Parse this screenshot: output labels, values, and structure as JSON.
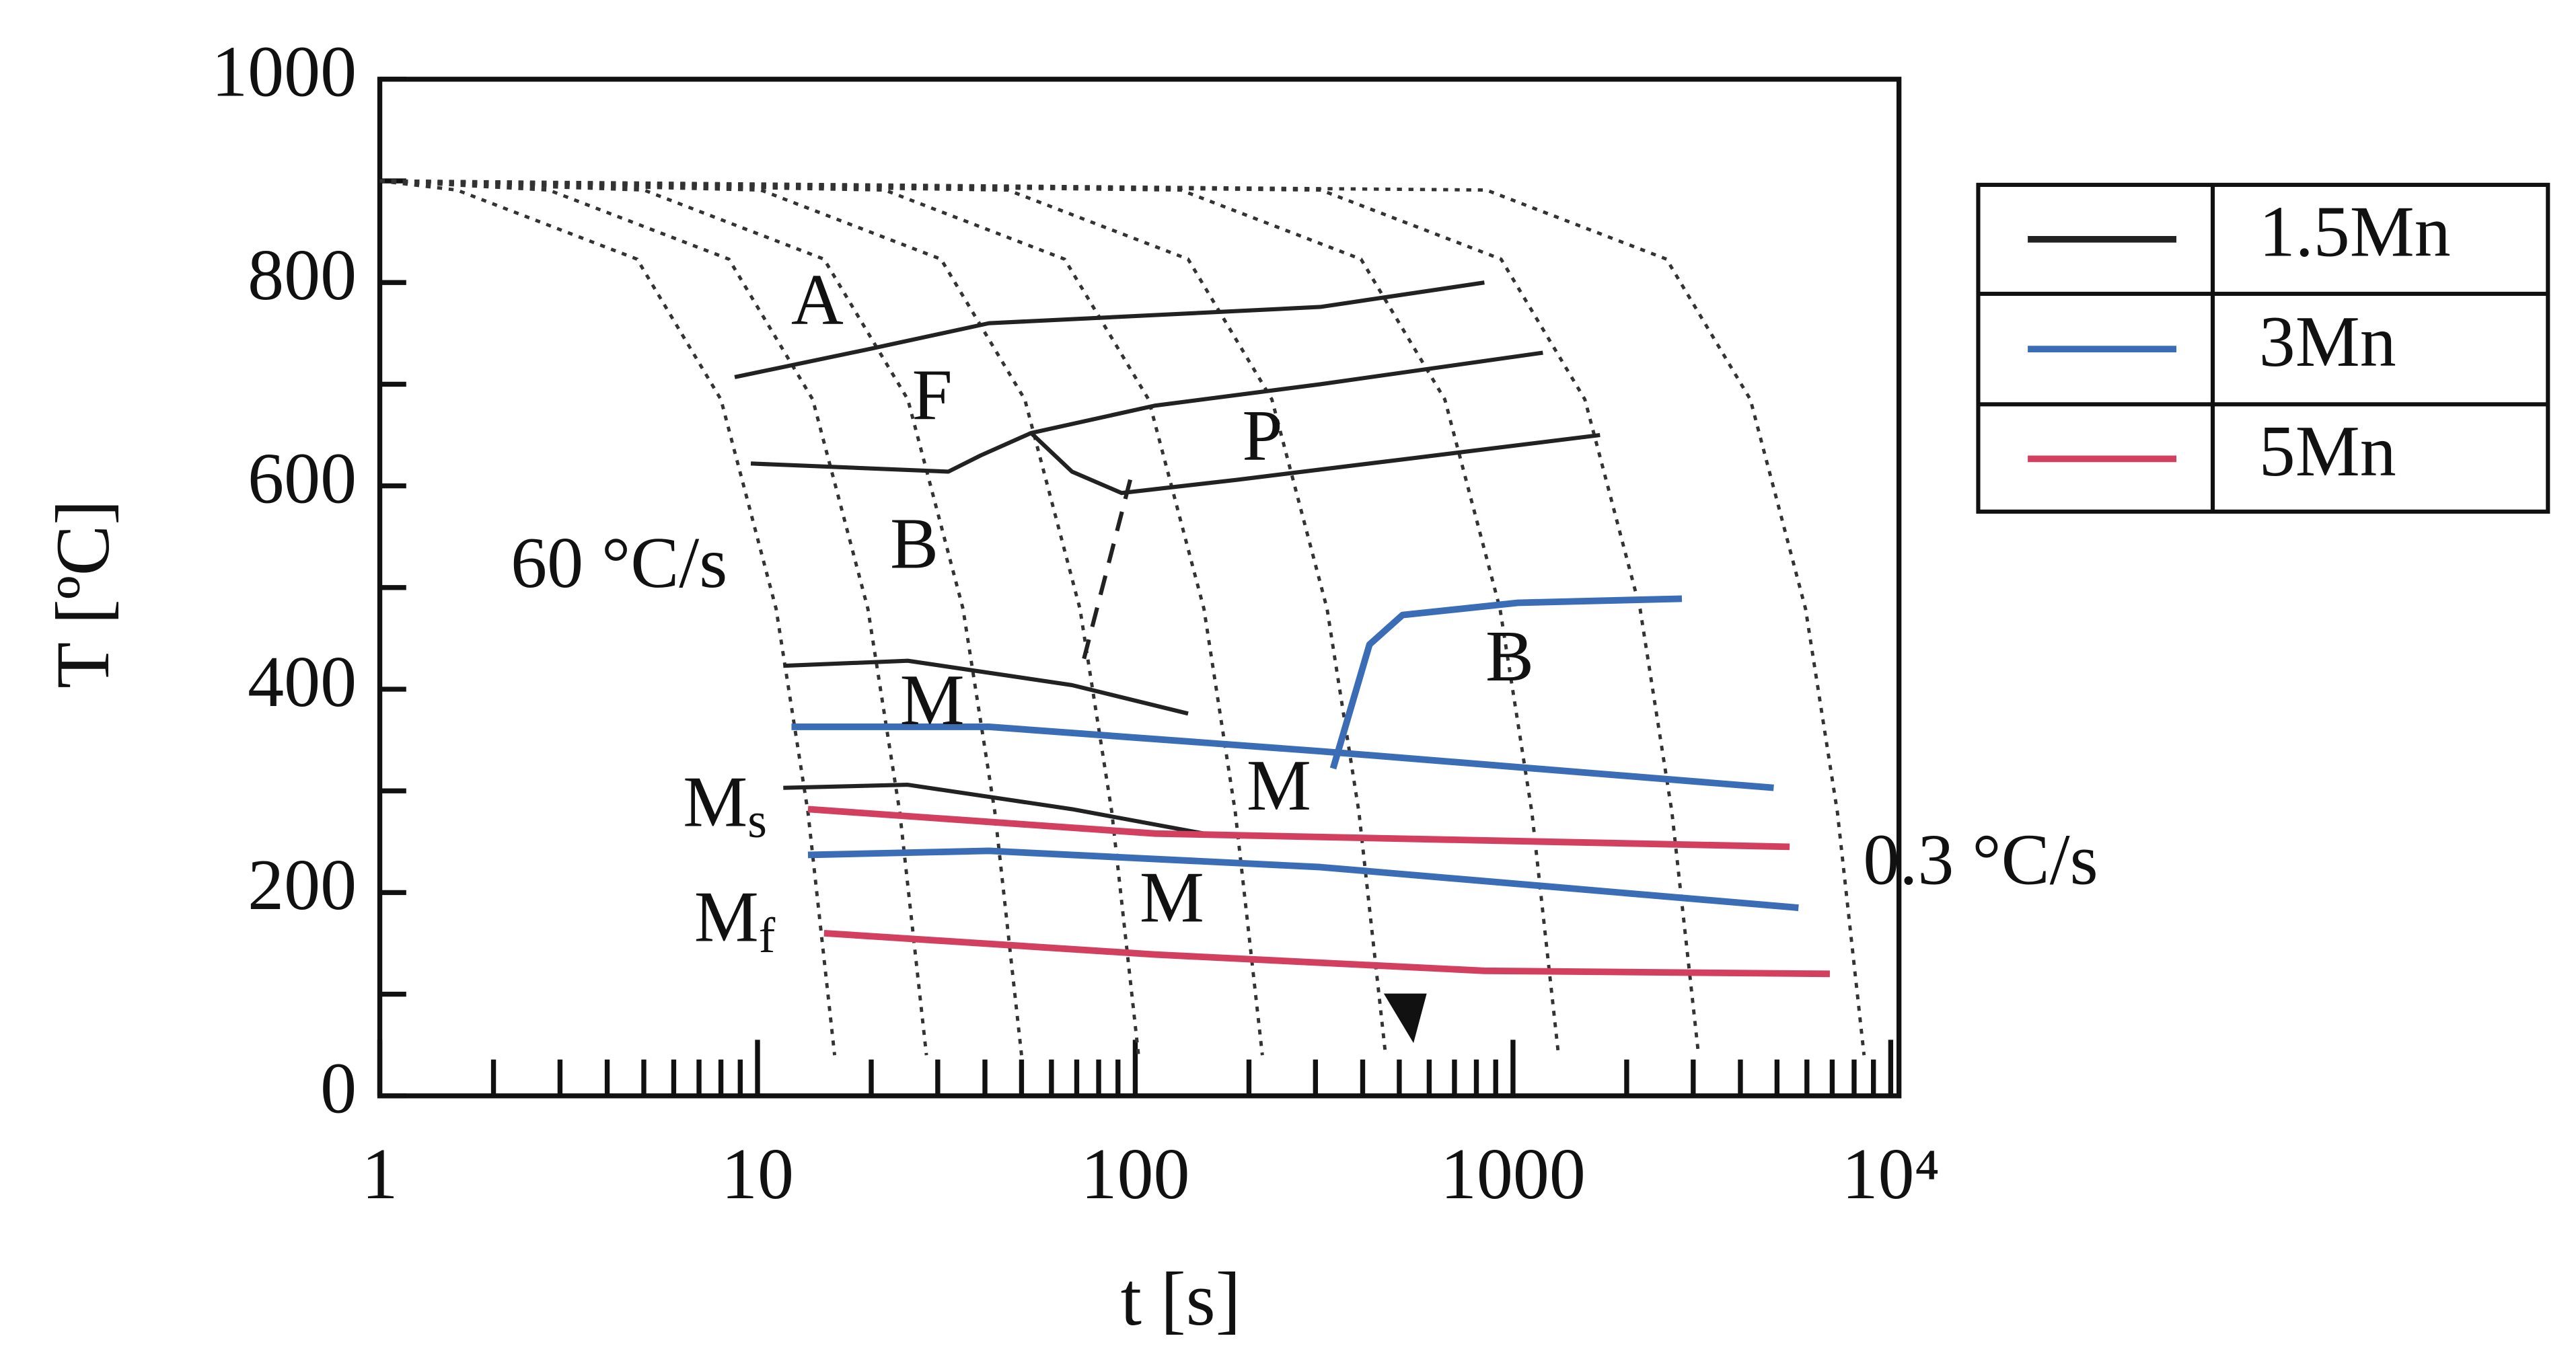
{
  "chart_data": {
    "type": "line",
    "x_label": "t [s]",
    "y_label": "T [ºC]",
    "xscale": "log",
    "xlim": [
      1,
      10000
    ],
    "ylim": [
      0,
      1000
    ],
    "xticks": [
      1,
      10,
      100,
      1000,
      {
        "value": 10000,
        "label": "10⁴"
      }
    ],
    "yticks": [
      0,
      200,
      400,
      600,
      800,
      1000
    ],
    "x_minor_ticks": [
      2,
      3,
      4,
      5,
      6,
      7,
      8,
      9,
      20,
      30,
      40,
      50,
      60,
      70,
      80,
      90,
      200,
      300,
      400,
      500,
      600,
      700,
      800,
      900,
      2000,
      3000,
      4000,
      5000,
      6000,
      7000,
      8000,
      9000
    ],
    "y_minor_ticks": [
      100,
      300,
      500,
      700,
      900
    ],
    "series": [
      {
        "name": "1.5Mn",
        "color": "#222222"
      },
      {
        "name": "3Mn",
        "color": "#3a6db5"
      },
      {
        "name": "5Mn",
        "color": "#d23f5f"
      }
    ],
    "cooling_curves": [
      {
        "x": [
          1,
          1.6,
          4.8,
          8,
          11.2,
          13.6,
          16
        ],
        "values": [
          900,
          891,
          823,
          685,
          479,
          279,
          40
        ]
      },
      {
        "x": [
          1,
          2.8,
          8.4,
          14,
          19.6,
          23.8,
          28
        ],
        "values": [
          900,
          891,
          823,
          685,
          479,
          279,
          40
        ]
      },
      {
        "x": [
          1,
          5,
          15,
          25,
          35,
          42.5,
          50
        ],
        "values": [
          900,
          891,
          823,
          685,
          479,
          279,
          40
        ]
      },
      {
        "x": [
          1,
          10.2,
          30.6,
          51,
          71.4,
          86.7,
          102
        ],
        "values": [
          900,
          891,
          823,
          685,
          479,
          279,
          40
        ]
      },
      {
        "x": [
          1,
          21.7,
          65,
          108.5,
          152,
          184,
          217
        ],
        "values": [
          900,
          891,
          823,
          685,
          479,
          279,
          40
        ]
      },
      {
        "x": [
          1,
          46,
          138,
          230,
          322,
          391,
          460
        ],
        "values": [
          900,
          891,
          823,
          685,
          479,
          279,
          40
        ]
      },
      {
        "x": [
          1,
          132,
          396,
          660,
          924,
          1122,
          1320
        ],
        "values": [
          900,
          891,
          823,
          685,
          479,
          279,
          40
        ]
      },
      {
        "x": [
          1,
          310,
          930,
          1550,
          2170,
          2635,
          3100
        ],
        "values": [
          900,
          891,
          823,
          685,
          479,
          279,
          40
        ]
      },
      {
        "x": [
          1,
          850,
          2550,
          4250,
          5950,
          7225,
          8500
        ],
        "values": [
          900,
          891,
          823,
          685,
          479,
          279,
          40
        ]
      }
    ],
    "curves": [
      {
        "series": 0,
        "x": [
          8.7,
          20,
          41,
          113,
          309,
          840
        ],
        "values": [
          707,
          735,
          760,
          768,
          776,
          800
        ]
      },
      {
        "series": 0,
        "x": [
          9.6,
          32,
          39,
          53,
          113,
          309,
          1200
        ],
        "values": [
          622,
          614,
          630,
          652,
          679,
          700,
          731
        ]
      },
      {
        "series": 0,
        "x": [
          53,
          68,
          92,
          186,
          510,
          1700
        ],
        "values": [
          652,
          614,
          593,
          606,
          626,
          650
        ]
      },
      {
        "series": 0,
        "dashed": true,
        "x": [
          97,
          72
        ],
        "values": [
          606,
          420
        ]
      },
      {
        "series": 0,
        "x": [
          11.7,
          25,
          68,
          138
        ],
        "values": [
          423,
          428,
          404,
          376
        ]
      },
      {
        "series": 0,
        "x": [
          11.7,
          25,
          68,
          152
        ],
        "values": [
          303,
          306,
          282,
          258
        ]
      },
      {
        "series": 1,
        "x": [
          12.3,
          41,
          309,
          4900
        ],
        "values": [
          363,
          363,
          339,
          303
        ]
      },
      {
        "series": 1,
        "x": [
          334,
          417,
          510,
          1030,
          2800
        ],
        "values": [
          322,
          444,
          473,
          485,
          489
        ]
      },
      {
        "series": 1,
        "x": [
          13.6,
          41,
          309,
          5700
        ],
        "values": [
          237,
          241,
          225,
          185
        ]
      },
      {
        "series": 2,
        "x": [
          13.6,
          113,
          5400
        ],
        "values": [
          282,
          258,
          245
        ]
      },
      {
        "series": 2,
        "x": [
          15,
          113,
          840,
          6900
        ],
        "values": [
          160,
          139,
          123,
          120
        ]
      }
    ],
    "annotations": [
      {
        "text": "A",
        "x": 14.4,
        "y": 776,
        "color": "#222222"
      },
      {
        "text": "F",
        "x": 29,
        "y": 682,
        "color": "#222222"
      },
      {
        "text": "P",
        "x": 217,
        "y": 642,
        "color": "#222222"
      },
      {
        "text": "B",
        "x": 26,
        "y": 536,
        "color": "#222222"
      },
      {
        "text": "M",
        "x": 29,
        "y": 382,
        "color": "#222222"
      },
      {
        "text": "B",
        "x": 980,
        "y": 425,
        "color": "#3a6db5"
      },
      {
        "text": "M",
        "x": 240,
        "y": 298,
        "color": "#3a6db5"
      },
      {
        "text": "M",
        "x": 125,
        "y": 188,
        "color": "#d23f5f"
      },
      {
        "text": "M",
        "sub": "s",
        "x": 8.2,
        "y": 282,
        "color": "#d23f5f"
      },
      {
        "text": "M",
        "sub": "f",
        "x": 8.7,
        "y": 169,
        "color": "#d23f5f"
      },
      {
        "text": "60 °C/s",
        "x": 4.3,
        "y": 517,
        "color": "#111111"
      },
      {
        "text": "0.3 °C/s",
        "x": 17300,
        "y": 225,
        "color": "#111111"
      }
    ]
  }
}
